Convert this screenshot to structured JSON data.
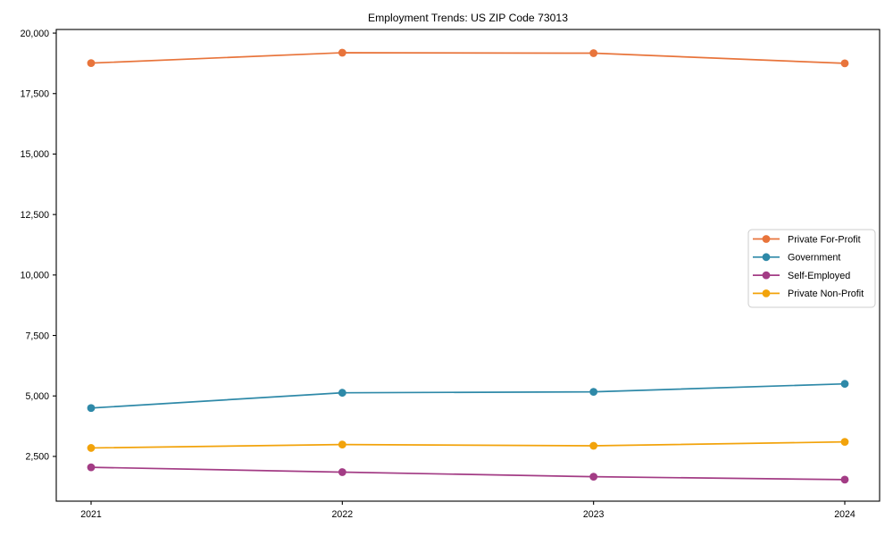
{
  "title": "Employment Trends: US ZIP Code 73013",
  "chart_data": {
    "type": "line",
    "x": [
      2021,
      2022,
      2023,
      2024
    ],
    "series": [
      {
        "name": "Private For-Profit",
        "slug": "private-for-profit",
        "color": "#E8743B",
        "values": [
          18760,
          19190,
          19170,
          18750
        ]
      },
      {
        "name": "Government",
        "slug": "government",
        "color": "#2E89A8",
        "values": [
          4500,
          5130,
          5170,
          5500
        ]
      },
      {
        "name": "Self-Employed",
        "slug": "self-employed",
        "color": "#A33C85",
        "values": [
          2050,
          1850,
          1660,
          1540
        ]
      },
      {
        "name": "Private Non-Profit",
        "slug": "private-non-profit",
        "color": "#F2A30B",
        "values": [
          2850,
          2990,
          2940,
          3100
        ]
      }
    ],
    "yticks": [
      2500,
      5000,
      7500,
      10000,
      12500,
      15000,
      17500,
      20000
    ],
    "ylim": [
      650,
      20150
    ],
    "xlabel": "",
    "ylabel": "",
    "grid": false,
    "legend_position": "center-right",
    "legend_border_color": "#cccccc",
    "axis_color": "#000000"
  }
}
